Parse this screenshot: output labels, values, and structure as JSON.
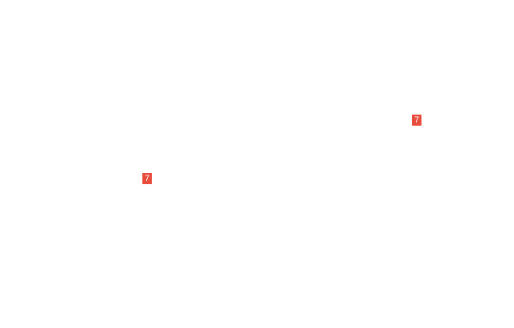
{
  "page": {
    "background_color": "#ffffff"
  },
  "badges": [
    {
      "count": "7",
      "color": "#e74c3c",
      "text_color": "#ffffff",
      "position": "right"
    },
    {
      "count": "7",
      "color": "#e74c3c",
      "text_color": "#ffffff",
      "position": "left"
    }
  ]
}
